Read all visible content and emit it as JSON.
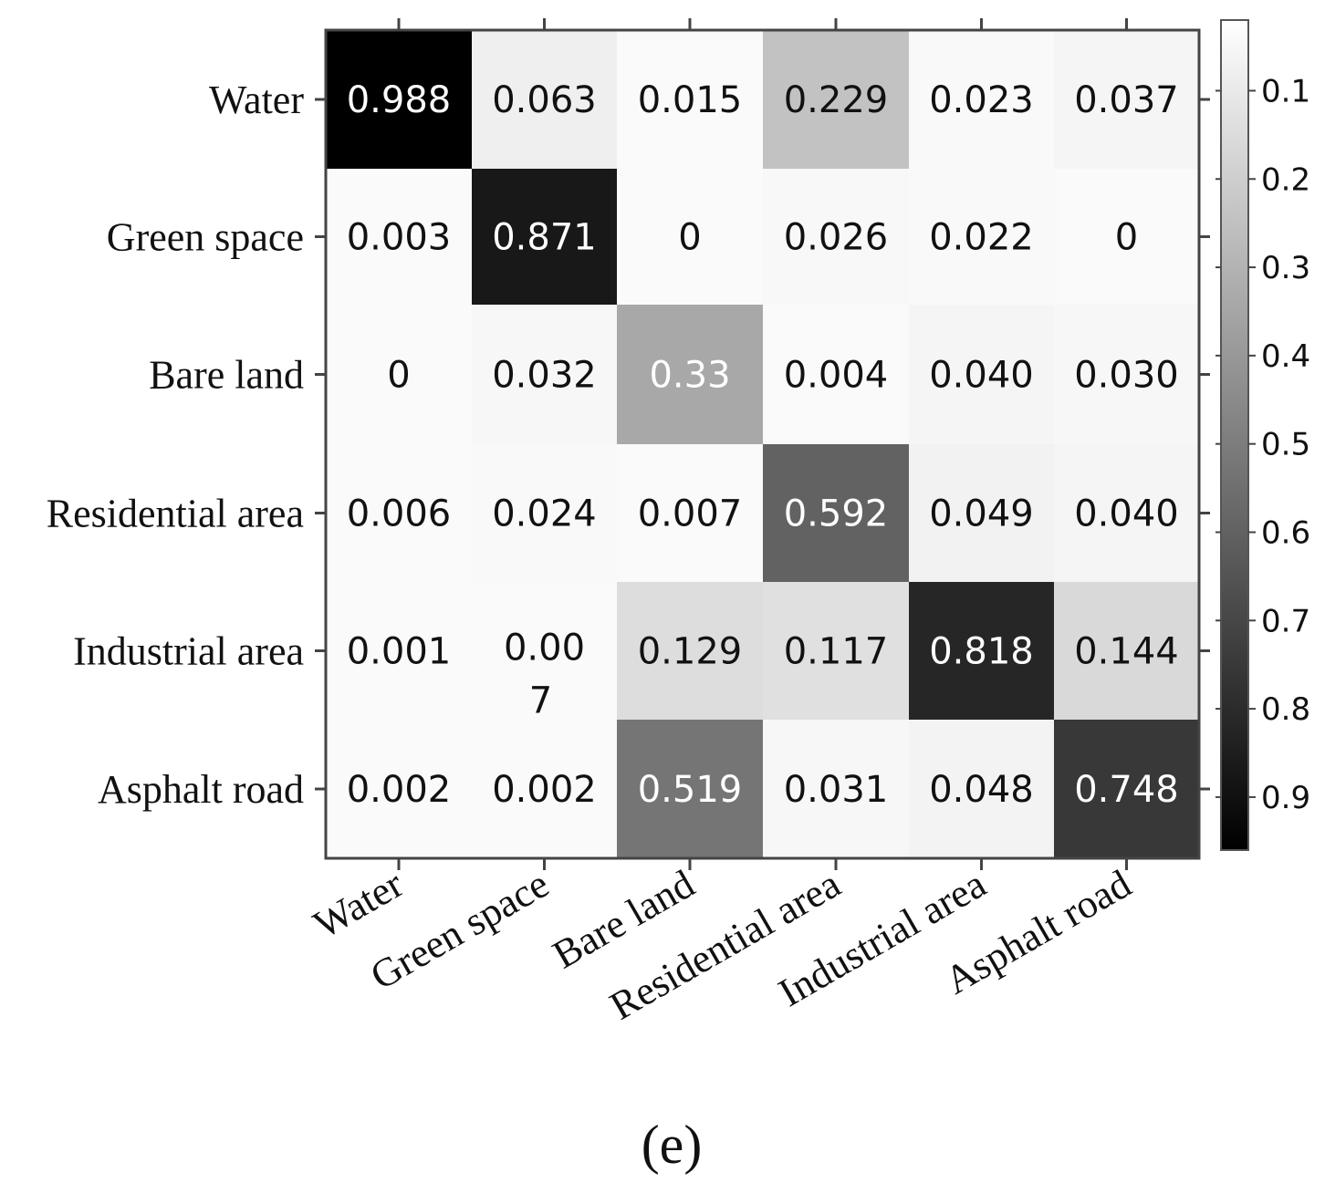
{
  "chart_data": {
    "type": "heatmap",
    "title": "",
    "xlabel": "",
    "ylabel": "",
    "row_labels": [
      "Water",
      "Green space",
      "Bare land",
      "Residential area",
      "Industrial area",
      "Asphalt road"
    ],
    "col_labels": [
      "Water",
      "Green space",
      "Bare land",
      "Residential area",
      "Industrial area",
      "Asphalt road"
    ],
    "values": [
      [
        0.988,
        0.063,
        0.015,
        0.229,
        0.023,
        0.037
      ],
      [
        0.003,
        0.871,
        0,
        0.026,
        0.022,
        0
      ],
      [
        0,
        0.032,
        0.33,
        0.004,
        0.04,
        0.03
      ],
      [
        0.006,
        0.024,
        0.007,
        0.592,
        0.049,
        0.04
      ],
      [
        0.001,
        0.007,
        0.129,
        0.117,
        0.818,
        0.144
      ],
      [
        0.002,
        0.002,
        0.519,
        0.031,
        0.048,
        0.748
      ]
    ],
    "cell_labels": [
      [
        "0.988",
        "0.063",
        "0.015",
        "0.229",
        "0.023",
        "0.037"
      ],
      [
        "0.003",
        "0.871",
        "0",
        "0.026",
        "0.022",
        "0"
      ],
      [
        "0",
        "0.032",
        "0.33",
        "0.004",
        "0.040",
        "0.030"
      ],
      [
        "0.006",
        "0.024",
        "0.007",
        "0.592",
        "0.049",
        "0.040"
      ],
      [
        "0.001",
        "0.00\n7",
        "0.129",
        "0.117",
        "0.818",
        "0.144"
      ],
      [
        "0.002",
        "0.002",
        "0.519",
        "0.031",
        "0.048",
        "0.748"
      ]
    ],
    "colormap": "gray_reversed",
    "colorbar": {
      "ticks": [
        "0.1",
        "0.2",
        "0.3",
        "0.4",
        "0.5",
        "0.6",
        "0.7",
        "0.8",
        "0.9"
      ],
      "range": [
        0.02,
        0.96
      ]
    }
  },
  "panel_label": "(e)"
}
